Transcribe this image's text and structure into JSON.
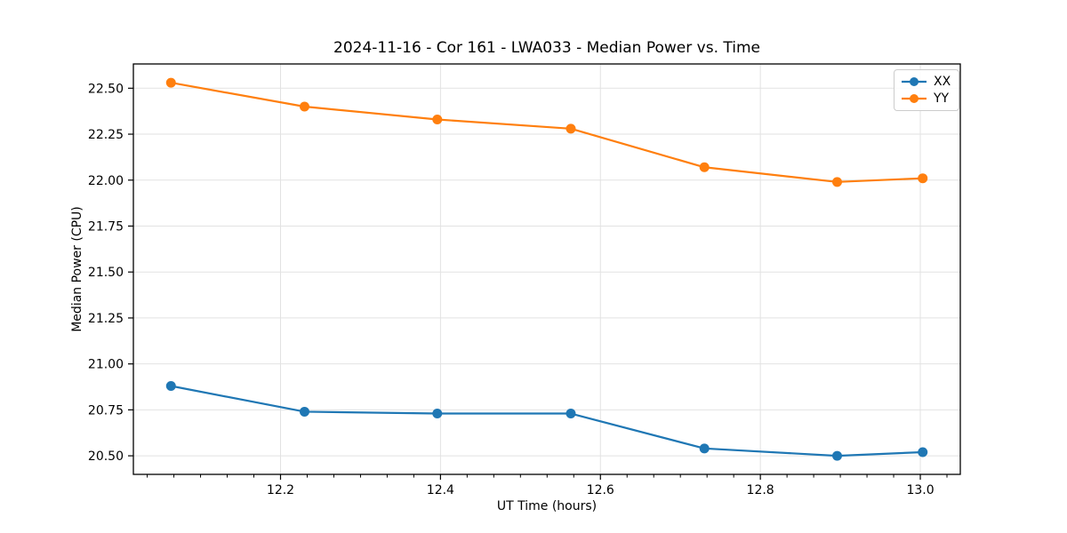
{
  "figure": {
    "background": "#ffffff",
    "axis_color": "#000000",
    "text_color": "#000000"
  },
  "chart_data": {
    "type": "line",
    "title": "2024-11-16 - Cor 161 - LWA033 - Median Power vs. Time",
    "xlabel": "UT Time (hours)",
    "ylabel": "Median Power (CPU)",
    "x": [
      12.063,
      12.23,
      12.396,
      12.563,
      12.73,
      12.896,
      13.003
    ],
    "series": [
      {
        "name": "XX",
        "color": "#1f77b4",
        "values": [
          20.88,
          20.74,
          20.73,
          20.73,
          20.54,
          20.5,
          20.52
        ]
      },
      {
        "name": "YY",
        "color": "#ff7f0e",
        "values": [
          22.53,
          22.4,
          22.33,
          22.28,
          22.07,
          21.99,
          22.01
        ]
      }
    ],
    "xlim": [
      12.016,
      13.05
    ],
    "ylim": [
      20.399,
      22.632
    ],
    "xticks": {
      "values": [
        12.2,
        12.4,
        12.6,
        12.8,
        13.0
      ],
      "labels": [
        "12.2",
        "12.4",
        "12.6",
        "12.8",
        "13.0"
      ]
    },
    "yticks": {
      "values": [
        20.5,
        20.75,
        21.0,
        21.25,
        21.5,
        21.75,
        22.0,
        22.25,
        22.5
      ],
      "labels": [
        "20.50",
        "20.75",
        "21.00",
        "21.25",
        "21.50",
        "21.75",
        "22.00",
        "22.25",
        "22.50"
      ]
    },
    "minor_xtick_step": 0.033333,
    "minor_xtick_origin": 12.0,
    "grid": true,
    "grid_color": "#e2e2e2",
    "legend": {
      "position": "upper right",
      "labels": [
        "XX",
        "YY"
      ]
    },
    "marker": "o"
  }
}
